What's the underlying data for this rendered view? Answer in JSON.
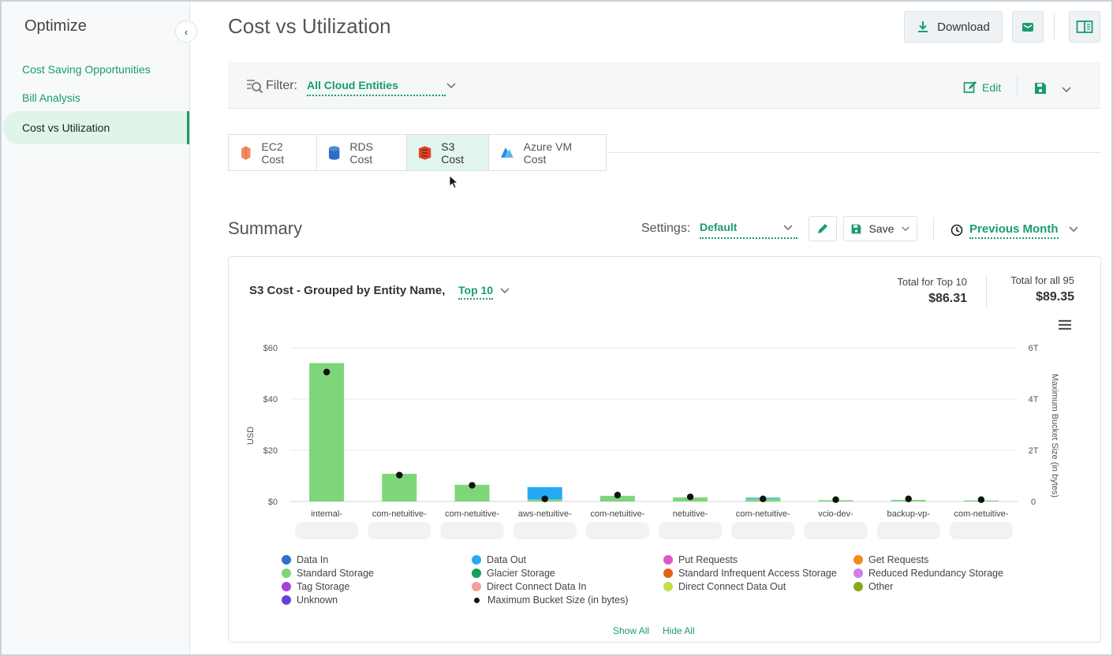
{
  "sidebar": {
    "title": "Optimize",
    "items": [
      {
        "label": "Cost Saving Opportunities"
      },
      {
        "label": "Bill Analysis"
      },
      {
        "label": "Cost vs Utilization"
      }
    ]
  },
  "header": {
    "title": "Cost vs Utilization",
    "download_label": "Download"
  },
  "filter": {
    "label": "Filter:",
    "value": "All Cloud Entities",
    "edit_label": "Edit"
  },
  "tabs": [
    {
      "label": "EC2 Cost"
    },
    {
      "label": "RDS Cost"
    },
    {
      "label": "S3 Cost"
    },
    {
      "label": "Azure VM Cost"
    }
  ],
  "summary": {
    "title": "Summary",
    "settings_label": "Settings:",
    "settings_value": "Default",
    "save_label": "Save",
    "period": "Previous Month"
  },
  "card": {
    "title": "S3 Cost - Grouped by Entity Name,",
    "topn": "Top 10",
    "total_top_label": "Total for Top 10",
    "total_top_value": "$86.31",
    "total_all_label": "Total for all 95",
    "total_all_value": "$89.35",
    "show_all": "Show All",
    "hide_all": "Hide All"
  },
  "chart_data": {
    "type": "bar",
    "ylabel": "USD",
    "y2label": "Maximum Bucket Size (in bytes)",
    "ylim": [
      0,
      60
    ],
    "y2lim": [
      0,
      6
    ],
    "yticks": [
      "$0",
      "$20",
      "$40",
      "$60"
    ],
    "y2ticks": [
      "0",
      "2T",
      "4T",
      "6T"
    ],
    "categories": [
      "internal-",
      "com-netuitive-",
      "com-netuitive-",
      "aws-netuitive-",
      "com-netuitive-",
      "netuitive-",
      "com-netuitive-",
      "vcio-dev-",
      "backup-vp-",
      "com-netuitive-"
    ],
    "series": [
      {
        "name": "Standard Storage",
        "color": "#7ed67a",
        "values": [
          54,
          10.8,
          6.5,
          0.8,
          2.2,
          1.6,
          1.2,
          0.5,
          0.6,
          0.4
        ]
      },
      {
        "name": "Data Out",
        "color": "#26a9f5",
        "values": [
          0,
          0,
          0,
          4.8,
          0,
          0,
          0.3,
          0,
          0,
          0
        ]
      },
      {
        "name": "Maximum Bucket Size (in bytes)",
        "type": "scatter",
        "axis": "y2",
        "color": "#111111",
        "values": [
          5.05,
          1.03,
          0.63,
          0.1,
          0.25,
          0.18,
          0.1,
          0.07,
          0.1,
          0.07
        ]
      }
    ],
    "legend": [
      {
        "label": "Data In",
        "color": "#2f6fd1"
      },
      {
        "label": "Data Out",
        "color": "#26a9f5"
      },
      {
        "label": "Put Requests",
        "color": "#e055c4"
      },
      {
        "label": "Get Requests",
        "color": "#f08c1a"
      },
      {
        "label": "Standard Storage",
        "color": "#7ed67a"
      },
      {
        "label": "Glacier Storage",
        "color": "#12a05c"
      },
      {
        "label": "Standard Infrequent Access Storage",
        "color": "#e0601a"
      },
      {
        "label": "Reduced Redundancy Storage",
        "color": "#d17fe8"
      },
      {
        "label": "Tag Storage",
        "color": "#a444d9"
      },
      {
        "label": "Direct Connect Data In",
        "color": "#f4a199"
      },
      {
        "label": "Direct Connect Data Out",
        "color": "#c5de4a"
      },
      {
        "label": "Other",
        "color": "#8aa81e"
      },
      {
        "label": "Unknown",
        "color": "#6a3fd6"
      },
      {
        "label": "Maximum Bucket Size (in bytes)",
        "color": "#111111"
      }
    ]
  }
}
